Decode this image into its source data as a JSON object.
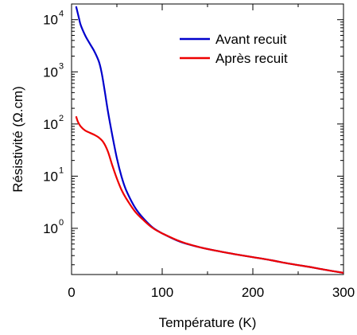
{
  "chart_data": {
    "type": "line",
    "xlabel": "Température (K)",
    "ylabel": "Résistivité (Ω.cm)",
    "y_scale": "log",
    "xlim": [
      0,
      300
    ],
    "ylim": [
      0.13,
      20000
    ],
    "x_ticks": [
      0,
      100,
      200,
      300
    ],
    "x_tick_labels": [
      "0",
      "100",
      "200",
      "300"
    ],
    "y_ticks": [
      1,
      10,
      100,
      1000,
      10000
    ],
    "y_tick_labels": [
      {
        "base": "10",
        "exp": "0"
      },
      {
        "base": "10",
        "exp": "1"
      },
      {
        "base": "10",
        "exp": "2"
      },
      {
        "base": "10",
        "exp": "3"
      },
      {
        "base": "10",
        "exp": "4"
      }
    ],
    "legend_position": "top-right",
    "grid": false,
    "series": [
      {
        "name": "Avant recuit",
        "color": "#0000cc",
        "x": [
          5,
          8,
          10,
          15,
          20,
          25,
          30,
          33,
          36,
          40,
          45,
          50,
          55,
          60,
          70,
          80,
          90,
          100,
          120,
          140,
          160,
          180,
          200,
          220,
          240,
          260,
          280,
          300
        ],
        "y": [
          18000,
          11000,
          8000,
          5000,
          3500,
          2500,
          1600,
          1000,
          500,
          180,
          60,
          22,
          10,
          5.5,
          2.5,
          1.5,
          1.02,
          0.8,
          0.55,
          0.44,
          0.37,
          0.32,
          0.28,
          0.245,
          0.21,
          0.185,
          0.16,
          0.14
        ]
      },
      {
        "name": "Après recuit",
        "color": "#ee0000",
        "x": [
          5,
          7,
          10,
          15,
          20,
          25,
          30,
          35,
          40,
          45,
          50,
          55,
          60,
          70,
          80,
          90,
          100,
          120,
          140,
          160,
          180,
          200,
          220,
          240,
          260,
          280,
          300
        ],
        "y": [
          140,
          110,
          90,
          75,
          68,
          62,
          55,
          45,
          30,
          16,
          9,
          5.5,
          3.8,
          2.1,
          1.4,
          1.0,
          0.8,
          0.56,
          0.44,
          0.37,
          0.32,
          0.28,
          0.245,
          0.21,
          0.185,
          0.16,
          0.14
        ]
      }
    ]
  }
}
